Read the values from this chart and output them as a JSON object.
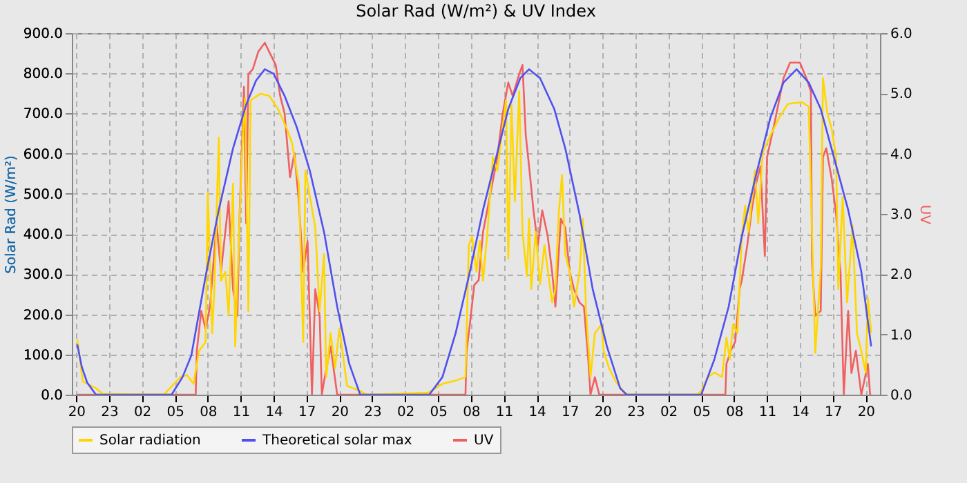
{
  "chart_data": {
    "type": "line",
    "title": "Solar Rad (W/m²) &  UV Index",
    "ylabel": "Solar Rad (W/m²)",
    "y2label": "UV",
    "xlim": [
      "--01-01T19:36",
      "--01-04T21:18"
    ],
    "ylim": [
      0,
      900
    ],
    "y2lim": [
      0,
      6
    ],
    "xticks": [
      {
        "value": "--01-01T20:00",
        "label": "20"
      },
      {
        "value": "--01-01T23:00",
        "label": "23"
      },
      {
        "value": "--01-02T02:00",
        "label": "02"
      },
      {
        "value": "--01-02T05:00",
        "label": "05"
      },
      {
        "value": "--01-02T08:00",
        "label": "08"
      },
      {
        "value": "--01-02T11:00",
        "label": "11"
      },
      {
        "value": "--01-02T14:00",
        "label": "14"
      },
      {
        "value": "--01-02T17:00",
        "label": "17"
      },
      {
        "value": "--01-02T20:00",
        "label": "20"
      },
      {
        "value": "--01-02T23:00",
        "label": "23"
      },
      {
        "value": "--01-03T02:00",
        "label": "02"
      },
      {
        "value": "--01-03T05:00",
        "label": "05"
      },
      {
        "value": "--01-03T08:00",
        "label": "08"
      },
      {
        "value": "--01-03T11:00",
        "label": "11"
      },
      {
        "value": "--01-03T14:00",
        "label": "14"
      },
      {
        "value": "--01-03T17:00",
        "label": "17"
      },
      {
        "value": "--01-03T20:00",
        "label": "20"
      },
      {
        "value": "--01-03T23:00",
        "label": "23"
      },
      {
        "value": "--01-04T02:00",
        "label": "02"
      },
      {
        "value": "--01-04T05:00",
        "label": "05"
      },
      {
        "value": "--01-04T08:00",
        "label": "08"
      },
      {
        "value": "--01-04T11:00",
        "label": "11"
      },
      {
        "value": "--01-04T14:00",
        "label": "14"
      },
      {
        "value": "--01-04T17:00",
        "label": "17"
      },
      {
        "value": "--01-04T20:00",
        "label": "20"
      }
    ],
    "yticks": [
      {
        "value": 0,
        "label": "0.0"
      },
      {
        "value": 100,
        "label": "100.0"
      },
      {
        "value": 200,
        "label": "200.0"
      },
      {
        "value": 300,
        "label": "300.0"
      },
      {
        "value": 400,
        "label": "400.0"
      },
      {
        "value": 500,
        "label": "500.0"
      },
      {
        "value": 600,
        "label": "600.0"
      },
      {
        "value": 700,
        "label": "700.0"
      },
      {
        "value": 800,
        "label": "800.0"
      },
      {
        "value": 900,
        "label": "900.0"
      }
    ],
    "y2ticks": [
      {
        "value": 0,
        "label": "0.0"
      },
      {
        "value": 1,
        "label": "1.0"
      },
      {
        "value": 2,
        "label": "2.0"
      },
      {
        "value": 3,
        "label": "3.0"
      },
      {
        "value": 4,
        "label": "4.0"
      },
      {
        "value": 5,
        "label": "5.0"
      },
      {
        "value": 6,
        "label": "6.0"
      }
    ],
    "grid": true,
    "legend": "bottom",
    "marker": "none",
    "line_style": "solid",
    "series": [
      {
        "name": "Solar radiation",
        "color": "#ffd700",
        "x": [
          "--01-01T20:06",
          "--01-01T20:36",
          "--01-01T21:48",
          "--01-01T22:24",
          "--01-02T04:00",
          "--01-02T05:30",
          "--01-02T06:06",
          "--01-02T06:42",
          "--01-02T07:12",
          "--01-02T07:48",
          "--01-02T08:00",
          "--01-02T08:24",
          "--01-02T08:36",
          "--01-02T09:00",
          "--01-02T09:12",
          "--01-02T09:36",
          "--01-02T09:54",
          "--01-02T10:18",
          "--01-02T10:30",
          "--01-02T10:54",
          "--01-02T11:12",
          "--01-02T11:24",
          "--01-02T11:42",
          "--01-02T11:54",
          "--01-02T12:48",
          "--01-02T13:36",
          "--01-02T14:24",
          "--01-02T15:18",
          "--01-02T15:42",
          "--01-02T16:18",
          "--01-02T16:42",
          "--01-02T16:54",
          "--01-02T17:48",
          "--01-02T18:12",
          "--01-02T18:36",
          "--01-02T18:48",
          "--01-02T19:12",
          "--01-02T19:36",
          "--01-02T20:00",
          "--01-02T20:42",
          "--01-02T21:54",
          "--01-02T22:30",
          "--01-03T04:06",
          "--01-03T05:24",
          "--01-03T06:36",
          "--01-03T07:30",
          "--01-03T07:48",
          "--01-03T08:06",
          "--01-03T08:30",
          "--01-03T08:48",
          "--01-03T09:06",
          "--01-03T09:30",
          "--01-03T10:00",
          "--01-03T10:24",
          "--01-03T10:48",
          "--01-03T11:12",
          "--01-03T11:24",
          "--01-03T11:42",
          "--01-03T12:00",
          "--01-03T12:24",
          "--01-03T12:42",
          "--01-03T13:06",
          "--01-03T13:18",
          "--01-03T13:30",
          "--01-03T13:54",
          "--01-03T14:18",
          "--01-03T14:42",
          "--01-03T15:24",
          "--01-03T15:42",
          "--01-03T16:00",
          "--01-03T16:18",
          "--01-03T16:36",
          "--01-03T17:00",
          "--01-03T17:24",
          "--01-03T17:54",
          "--01-03T18:12",
          "--01-03T18:30",
          "--01-03T18:54",
          "--01-03T19:18",
          "--01-03T19:54",
          "--01-03T20:06",
          "--01-03T20:36",
          "--01-03T21:12",
          "--01-03T22:00",
          "--01-03T22:24",
          "--01-04T04:36",
          "--01-04T05:00",
          "--01-04T05:36",
          "--01-04T06:12",
          "--01-04T06:54",
          "--01-04T07:18",
          "--01-04T07:36",
          "--01-04T07:54",
          "--01-04T08:18",
          "--01-04T08:42",
          "--01-04T09:00",
          "--01-04T09:18",
          "--01-04T09:36",
          "--01-04T09:54",
          "--01-04T10:12",
          "--01-04T10:36",
          "--01-04T11:18",
          "--01-04T12:06",
          "--01-04T12:54",
          "--01-04T14:12",
          "--01-04T14:48",
          "--01-04T15:12",
          "--01-04T15:24",
          "--01-04T15:54",
          "--01-04T16:06",
          "--01-04T16:30",
          "--01-04T16:54",
          "--01-04T17:18",
          "--01-04T17:30",
          "--01-04T17:54",
          "--01-04T18:18",
          "--01-04T18:48",
          "--01-04T19:12",
          "--01-04T19:36",
          "--01-04T20:00",
          "--01-04T20:12",
          "--01-04T20:30"
        ],
        "values": [
          137,
          33,
          16,
          2,
          0,
          44,
          49,
          27,
          109,
          131,
          503,
          153,
          263,
          640,
          284,
          306,
          197,
          525,
          120,
          438,
          651,
          738,
          208,
          733,
          749,
          744,
          711,
          656,
          624,
          525,
          131,
          558,
          416,
          208,
          350,
          44,
          153,
          66,
          164,
          22,
          9,
          0,
          5,
          27,
          35,
          44,
          372,
          394,
          306,
          383,
          284,
          405,
          591,
          558,
          645,
          733,
          339,
          722,
          481,
          755,
          405,
          295,
          438,
          263,
          405,
          274,
          372,
          230,
          263,
          449,
          547,
          350,
          306,
          219,
          306,
          438,
          208,
          44,
          153,
          175,
          109,
          66,
          33,
          5,
          0,
          0,
          9,
          44,
          55,
          44,
          142,
          88,
          175,
          153,
          394,
          470,
          405,
          481,
          558,
          427,
          602,
          645,
          689,
          724,
          728,
          717,
          306,
          104,
          317,
          788,
          700,
          662,
          591,
          263,
          492,
          230,
          421,
          153,
          109,
          55,
          241,
          153
        ]
      },
      {
        "name": "Theoretical solar max",
        "color": "#5050f0",
        "x": [
          "--01-01T20:06",
          "--01-01T20:30",
          "--01-01T21:00",
          "--01-01T21:48",
          "--01-02T04:42",
          "--01-02T05:42",
          "--01-02T06:30",
          "--01-02T07:48",
          "--01-02T09:00",
          "--01-02T10:18",
          "--01-02T11:30",
          "--01-02T12:24",
          "--01-02T13:12",
          "--01-02T14:00",
          "--01-02T15:00",
          "--01-02T16:06",
          "--01-02T17:18",
          "--01-02T18:36",
          "--01-02T19:48",
          "--01-02T20:54",
          "--01-02T21:54",
          "--01-03T04:12",
          "--01-03T05:24",
          "--01-03T06:36",
          "--01-03T07:54",
          "--01-03T09:06",
          "--01-03T10:24",
          "--01-03T11:24",
          "--01-03T12:30",
          "--01-03T13:18",
          "--01-03T14:18",
          "--01-03T15:36",
          "--01-03T16:36",
          "--01-03T17:54",
          "--01-03T19:06",
          "--01-03T20:24",
          "--01-03T21:36",
          "--01-03T22:12",
          "--01-04T05:00",
          "--01-04T06:12",
          "--01-04T07:30",
          "--01-04T08:42",
          "--01-04T10:00",
          "--01-04T11:18",
          "--01-04T12:30",
          "--01-04T13:42",
          "--01-04T14:48",
          "--01-04T15:54",
          "--01-04T17:06",
          "--01-04T18:24",
          "--01-04T19:36",
          "--01-04T20:30"
        ],
        "values": [
          125,
          70,
          30,
          0,
          0,
          44,
          98,
          295,
          460,
          613,
          722,
          782,
          810,
          799,
          744,
          667,
          558,
          405,
          219,
          77,
          0,
          0,
          44,
          153,
          306,
          460,
          602,
          711,
          788,
          810,
          788,
          711,
          613,
          449,
          263,
          120,
          16,
          0,
          0,
          88,
          219,
          394,
          547,
          689,
          777,
          810,
          777,
          711,
          591,
          460,
          306,
          120
        ]
      },
      {
        "name": "UV",
        "color": "#f06060",
        "axis": "y2",
        "x": [
          "--01-01T20:06",
          "--01-02T06:54",
          "--01-02T07:00",
          "--01-02T07:24",
          "--01-02T07:48",
          "--01-02T08:12",
          "--01-02T08:48",
          "--01-02T09:12",
          "--01-02T09:54",
          "--01-02T10:18",
          "--01-02T10:42",
          "--01-02T10:54",
          "--01-02T11:18",
          "--01-02T11:30",
          "--01-02T11:42",
          "--01-02T12:06",
          "--01-02T12:36",
          "--01-02T13:12",
          "--01-02T13:36",
          "--01-02T14:12",
          "--01-02T14:36",
          "--01-02T15:00",
          "--01-02T15:30",
          "--01-02T15:54",
          "--01-02T16:18",
          "--01-02T16:42",
          "--01-02T17:06",
          "--01-02T17:30",
          "--01-02T17:48",
          "--01-02T18:12",
          "--01-02T18:24",
          "--01-02T18:36",
          "--01-02T19:12",
          "--01-02T19:48",
          "--01-03T07:30",
          "--01-03T07:36",
          "--01-03T07:54",
          "--01-03T08:18",
          "--01-03T08:42",
          "--01-03T09:06",
          "--01-03T09:48",
          "--01-03T10:24",
          "--01-03T10:54",
          "--01-03T11:24",
          "--01-03T11:48",
          "--01-03T12:24",
          "--01-03T12:42",
          "--01-03T13:00",
          "--01-03T13:18",
          "--01-03T13:42",
          "--01-03T14:06",
          "--01-03T14:30",
          "--01-03T15:00",
          "--01-03T15:24",
          "--01-03T15:42",
          "--01-03T16:12",
          "--01-03T16:36",
          "--01-03T17:00",
          "--01-03T17:24",
          "--01-03T17:54",
          "--01-03T18:18",
          "--01-03T18:42",
          "--01-03T18:54",
          "--01-03T19:18",
          "--01-03T19:42",
          "--01-04T07:12",
          "--01-04T07:18",
          "--01-04T07:42",
          "--01-04T08:06",
          "--01-04T08:30",
          "--01-04T08:42",
          "--01-04T09:12",
          "--01-04T09:36",
          "--01-04T10:00",
          "--01-04T10:24",
          "--01-04T10:48",
          "--01-04T11:00",
          "--01-04T11:42",
          "--01-04T12:30",
          "--01-04T13:06",
          "--01-04T14:00",
          "--01-04T14:36",
          "--01-04T15:00",
          "--01-04T15:06",
          "--01-04T15:24",
          "--01-04T15:54",
          "--01-04T16:06",
          "--01-04T16:24",
          "--01-04T16:54",
          "--01-04T17:18",
          "--01-04T17:42",
          "--01-04T18:00",
          "--01-04T18:24",
          "--01-04T18:42",
          "--01-04T19:06",
          "--01-04T19:36",
          "--01-04T20:12",
          "--01-04T20:24",
          "--01-04T20:30"
        ],
        "values": [
          0,
          0,
          0.73,
          1.39,
          1.09,
          1.46,
          2.84,
          2.04,
          3.21,
          1.75,
          1.31,
          2.99,
          5.11,
          2.84,
          5.32,
          5.4,
          5.69,
          5.84,
          5.69,
          5.47,
          4.96,
          4.67,
          3.61,
          4.01,
          3.21,
          2.04,
          2.55,
          0,
          1.75,
          1.31,
          0,
          0.22,
          0.8,
          0,
          0,
          0.73,
          1.17,
          1.82,
          1.9,
          2.7,
          3.36,
          3.94,
          4.67,
          5.18,
          4.96,
          5.32,
          5.47,
          4.3,
          3.79,
          3.06,
          2.48,
          3.06,
          2.63,
          2.04,
          1.46,
          2.92,
          2.77,
          2.04,
          1.75,
          1.53,
          1.46,
          0.58,
          0,
          0.29,
          0,
          0,
          0.51,
          0.73,
          0.88,
          1.75,
          1.9,
          2.48,
          3.06,
          3.5,
          3.79,
          2.3,
          3.94,
          4.52,
          5.25,
          5.51,
          5.51,
          5.25,
          5.03,
          2.23,
          1.31,
          1.39,
          3.94,
          4.09,
          3.58,
          2.99,
          2.04,
          0,
          1.39,
          0.36,
          0.73,
          0,
          0.51,
          0,
          0
        ]
      }
    ]
  }
}
